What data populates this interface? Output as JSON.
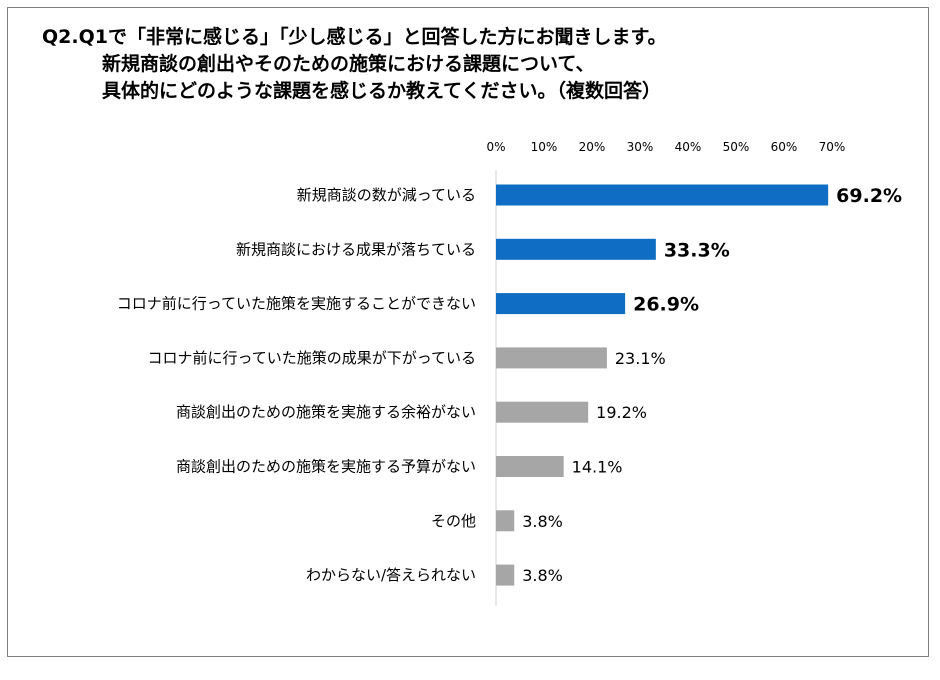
{
  "question": {
    "line1": "Q2.Q1で「非常に感じる」「少し感じる」と回答した方にお聞きします。",
    "line2": "新規商談の創出やそのための施策における課題について、",
    "line3": "具体的にどのような課題を感じるか教えてください。（複数回答）"
  },
  "chart_data": {
    "type": "bar",
    "orientation": "horizontal",
    "title": "Q2.Q1で「非常に感じる」「少し感じる」と回答した方にお聞きします。 新規商談の創出やそのための施策における課題について、 具体的にどのような課題を感じるか教えてください。（複数回答）",
    "categories": [
      "新規商談の数が減っている",
      "新規商談における成果が落ちている",
      "コロナ前に行っていた施策を実施することができない",
      "コロナ前に行っていた施策の成果が下がっている",
      "商談創出のための施策を実施する余裕がない",
      "商談創出のための施策を実施する予算がない",
      "その他",
      "わからない/答えられない"
    ],
    "values": [
      69.2,
      33.3,
      26.9,
      23.1,
      19.2,
      14.1,
      3.8,
      3.8
    ],
    "value_labels": [
      "69.2%",
      "33.3%",
      "26.9%",
      "23.1%",
      "19.2%",
      "14.1%",
      "3.8%",
      "3.8%"
    ],
    "highlighted": [
      true,
      true,
      true,
      false,
      false,
      false,
      false,
      false
    ],
    "xlim": [
      0,
      70
    ],
    "x_ticks": [
      0,
      10,
      20,
      30,
      40,
      50,
      60,
      70
    ],
    "x_tick_labels": [
      "0%",
      "10%",
      "20%",
      "30%",
      "40%",
      "50%",
      "60%",
      "70%"
    ],
    "xaxis_position": "top",
    "grid": false,
    "colors": {
      "highlight": "#0f6ec3",
      "normal": "#a6a6a6"
    }
  }
}
